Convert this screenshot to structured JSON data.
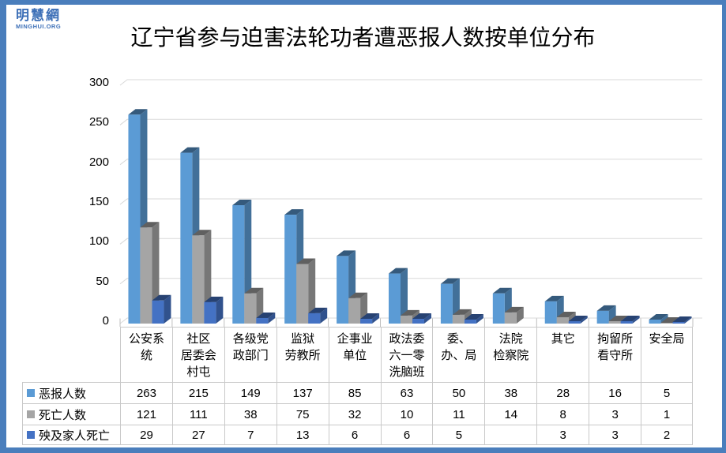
{
  "brand": {
    "name_cn": "明慧網",
    "name_en": "MINGHUI.ORG",
    "color": "#3C6FB7"
  },
  "frame_color": "#4A7EBC",
  "chart_data": {
    "type": "bar",
    "style": "3d-clustered-column",
    "title": "辽宁省参与迫害法轮功者遭恶报人数按单位分布",
    "categories": [
      "公安系\n统",
      "社区\n居委会\n村屯",
      "各级党\n政部门",
      "监狱\n劳教所",
      "企事业\n单位",
      "政法委\n六一零\n洗脑班",
      "委、\n办、局",
      "法院\n检察院",
      "其它",
      "拘留所\n看守所",
      "安全局"
    ],
    "series": [
      {
        "name": "恶报人数",
        "color": "#5B9BD5",
        "values": [
          263,
          215,
          149,
          137,
          85,
          63,
          50,
          38,
          28,
          16,
          5
        ]
      },
      {
        "name": "死亡人数",
        "color": "#A5A5A5",
        "values": [
          121,
          111,
          38,
          75,
          32,
          10,
          11,
          14,
          8,
          3,
          1
        ]
      },
      {
        "name": "殃及家人死亡",
        "color": "#4472C4",
        "values": [
          29,
          27,
          7,
          13,
          6,
          6,
          5,
          null,
          3,
          3,
          2
        ]
      }
    ],
    "ylim": [
      0,
      300
    ],
    "yticks": [
      300,
      250,
      200,
      150,
      100,
      50,
      0
    ],
    "grid": true,
    "legend_position": "table-left",
    "gridline_color": "#D9D9D9",
    "axis_tick_color": "#BFBFBF",
    "table_border_color": "#C9C9C9"
  }
}
